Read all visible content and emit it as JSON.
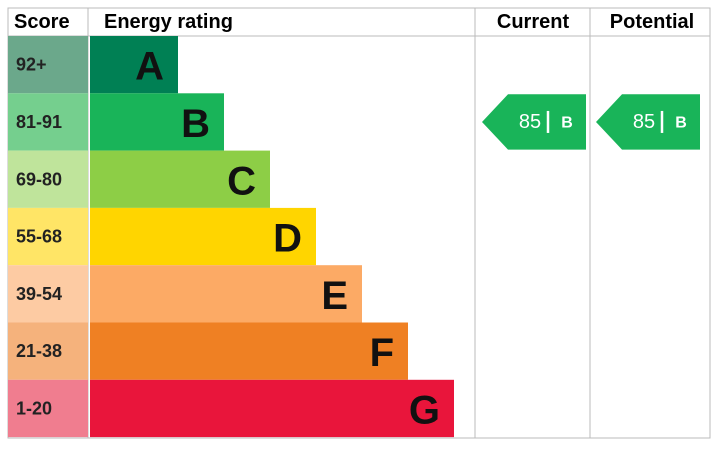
{
  "header": {
    "score": "Score",
    "rating": "Energy rating",
    "current": "Current",
    "potential": "Potential"
  },
  "rows": [
    {
      "score": "92+",
      "band": "A"
    },
    {
      "score": "81-91",
      "band": "B"
    },
    {
      "score": "69-80",
      "band": "C"
    },
    {
      "score": "55-68",
      "band": "D"
    },
    {
      "score": "39-54",
      "band": "E"
    },
    {
      "score": "21-38",
      "band": "F"
    },
    {
      "score": "1-20",
      "band": "G"
    }
  ],
  "current": {
    "score": "85",
    "band": "B"
  },
  "potential": {
    "score": "85",
    "band": "B"
  }
}
